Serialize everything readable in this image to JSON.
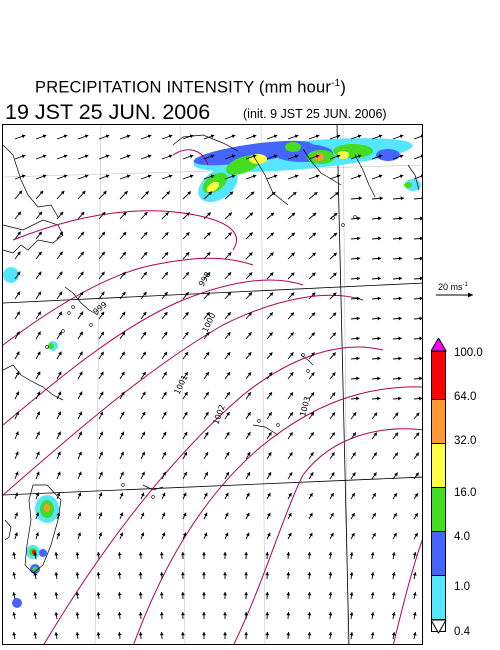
{
  "title": {
    "main": "PRECIPITATION INTENSITY (mm hour",
    "unit_sup": "-1",
    "close": ")"
  },
  "valid_time": "19 JST 25 JUN. 2006",
  "init_time": "(init. 9 JST 25 JUN. 2006)",
  "wind_scale": {
    "label": "20 ms",
    "sup": "-1"
  },
  "pressure_labels": [
    "998",
    "999",
    "1000",
    "1001",
    "1002",
    "1003"
  ],
  "colorbar": {
    "levels": [
      "100.0",
      "64.0",
      "32.0",
      "16.0",
      "4.0",
      "1.0",
      "0.4"
    ],
    "colors": [
      "#ff00ff",
      "#ff0000",
      "#ff9933",
      "#ffff44",
      "#44dd22",
      "#4466ff",
      "#55e6ff",
      "#ffffff"
    ]
  },
  "map_colors": {
    "coast": "#000000",
    "isobar": "#b0005a",
    "grid": "#888888",
    "rain_levels": [
      "#55e6ff",
      "#4466ff",
      "#44dd22",
      "#ffff44",
      "#ff9933",
      "#ff0000"
    ]
  }
}
